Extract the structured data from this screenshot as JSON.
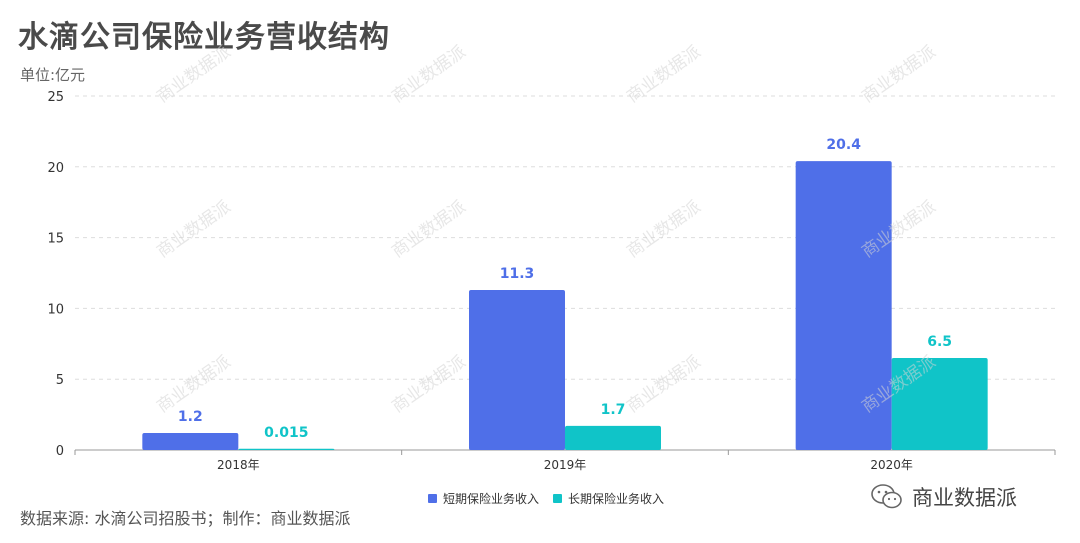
{
  "title": "水滴公司保险业务营收结构",
  "unit_label": "单位:亿元",
  "source_text": "数据来源: 水滴公司招股书；制作：商业数据派",
  "brand_text": "商业数据派",
  "watermark_text": "商业数据派",
  "colors": {
    "series1": "#4f6fe8",
    "series2": "#10c4c8",
    "grid": "#dddddd",
    "axis": "#999999"
  },
  "chart_data": {
    "type": "bar",
    "categories": [
      "2018年",
      "2019年",
      "2020年"
    ],
    "series": [
      {
        "name": "短期保险业务收入",
        "values": [
          1.2,
          11.3,
          20.4
        ],
        "labels": [
          "1.2",
          "11.3",
          "20.4"
        ]
      },
      {
        "name": "长期保险业务收入",
        "values": [
          0.015,
          1.7,
          6.5
        ],
        "labels": [
          "0.015",
          "1.7",
          "6.5"
        ]
      }
    ],
    "ylim": [
      0,
      25
    ],
    "yticks": [
      0,
      5,
      10,
      15,
      20,
      25
    ],
    "grid": true,
    "legend_position": "bottom"
  }
}
